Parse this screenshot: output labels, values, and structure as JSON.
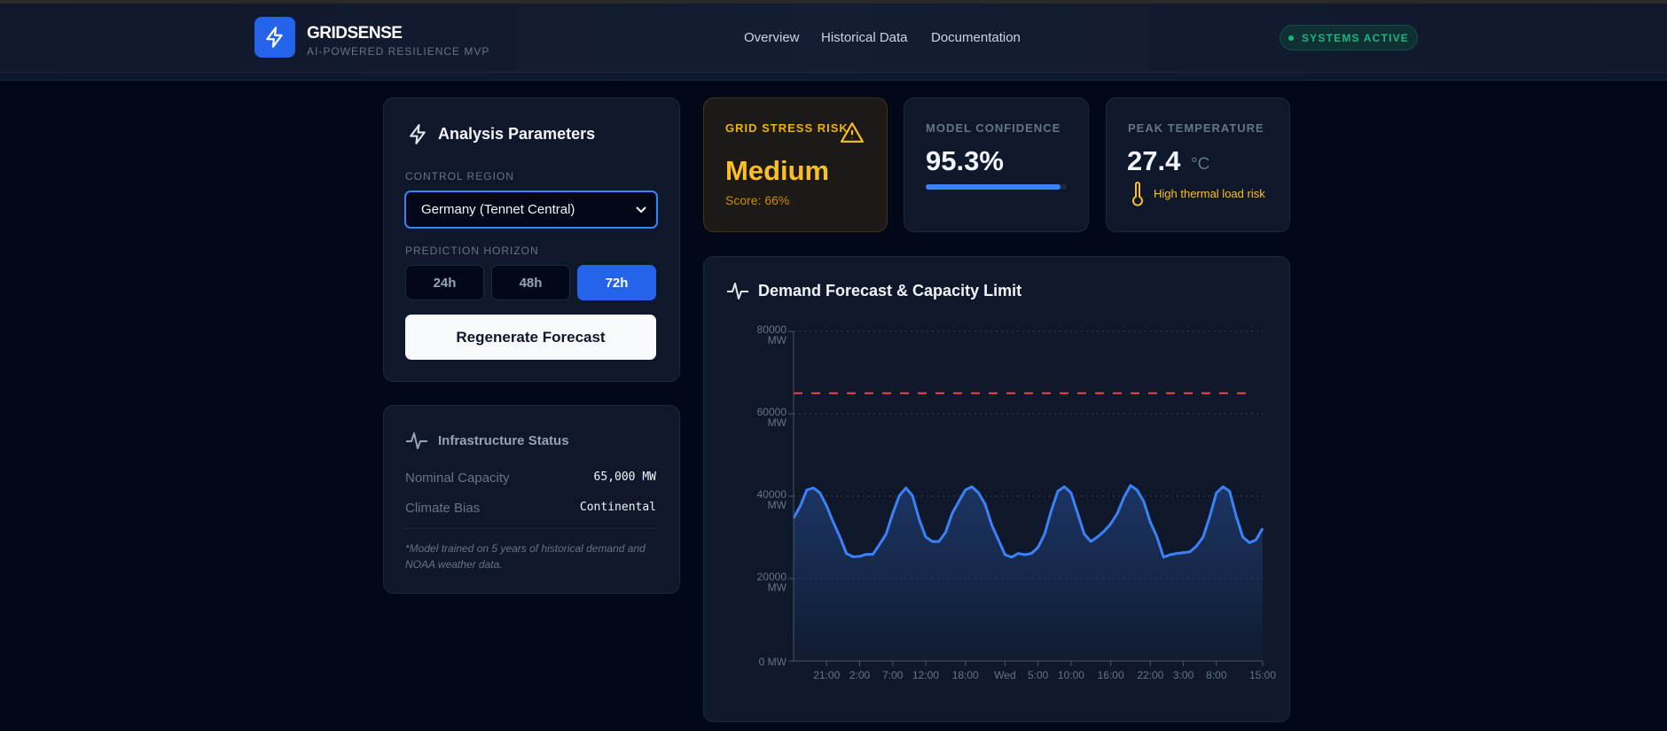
{
  "header": {
    "brand": "GRIDSENSE",
    "tagline": "AI-POWERED RESILIENCE MVP",
    "nav": [
      "Overview",
      "Historical Data",
      "Documentation"
    ],
    "status": "SYSTEMS ACTIVE"
  },
  "params": {
    "title": "Analysis Parameters",
    "region_label": "CONTROL REGION",
    "region_value": "Germany (Tennet Central)",
    "horizon_label": "PREDICTION HORIZON",
    "horizons": [
      "24h",
      "48h",
      "72h"
    ],
    "selected_horizon": "72h",
    "regenerate": "Regenerate Forecast"
  },
  "infra": {
    "title": "Infrastructure Status",
    "rows": [
      {
        "k": "Nominal Capacity",
        "v": "65,000 MW"
      },
      {
        "k": "Climate Bias",
        "v": "Continental"
      }
    ],
    "note": "*Model trained on 5 years of historical demand and NOAA weather data."
  },
  "stats": {
    "risk": {
      "label": "GRID STRESS RISK",
      "value": "Medium",
      "score": "Score: 66%"
    },
    "confidence": {
      "label": "MODEL CONFIDENCE",
      "value": "95.3%",
      "fraction": 0.953
    },
    "temp": {
      "label": "PEAK TEMPERATURE",
      "value": "27.4",
      "unit": "°C",
      "note": "High thermal load risk"
    }
  },
  "colors": {
    "accent": "#2563eb",
    "line": "#3b82f6",
    "capacity": "#ef4444",
    "warning": "#fbbf24",
    "success": "#10b981"
  },
  "chart_data": {
    "type": "area",
    "title": "Demand Forecast & Capacity Limit",
    "ylim": [
      0,
      80000
    ],
    "yticks": [
      "0 MW",
      "20000 MW",
      "40000 MW",
      "60000 MW",
      "80000 MW"
    ],
    "ytick_values": [
      0,
      20000,
      40000,
      60000,
      80000
    ],
    "xticks": [
      {
        "label": "21:00",
        "h": 5
      },
      {
        "label": "2:00",
        "h": 10
      },
      {
        "label": "7:00",
        "h": 15
      },
      {
        "label": "12:00",
        "h": 20
      },
      {
        "label": "18:00",
        "h": 26
      },
      {
        "label": "Wed",
        "h": 32
      },
      {
        "label": "5:00",
        "h": 37
      },
      {
        "label": "10:00",
        "h": 42
      },
      {
        "label": "16:00",
        "h": 48
      },
      {
        "label": "22:00",
        "h": 54
      },
      {
        "label": "3:00",
        "h": 59
      },
      {
        "label": "8:00",
        "h": 64
      },
      {
        "label": "15:00",
        "h": 71
      }
    ],
    "capacity": 65000,
    "demand": [
      34700,
      37600,
      41500,
      42000,
      40800,
      37600,
      33700,
      30100,
      26100,
      25300,
      25400,
      25900,
      25900,
      28300,
      30800,
      35800,
      40100,
      42000,
      40100,
      34400,
      30100,
      29000,
      29000,
      31200,
      35800,
      38700,
      41500,
      42300,
      40800,
      38000,
      33000,
      29400,
      25800,
      25200,
      26100,
      25800,
      26100,
      27600,
      30800,
      36500,
      41200,
      42300,
      40800,
      35800,
      30800,
      29000,
      30100,
      31500,
      33300,
      35800,
      39700,
      42600,
      41500,
      38700,
      33700,
      30100,
      25200,
      25800,
      26100,
      26300,
      26500,
      27900,
      30100,
      35100,
      40800,
      42300,
      41200,
      35100,
      30100,
      28700,
      29400,
      32200
    ]
  }
}
